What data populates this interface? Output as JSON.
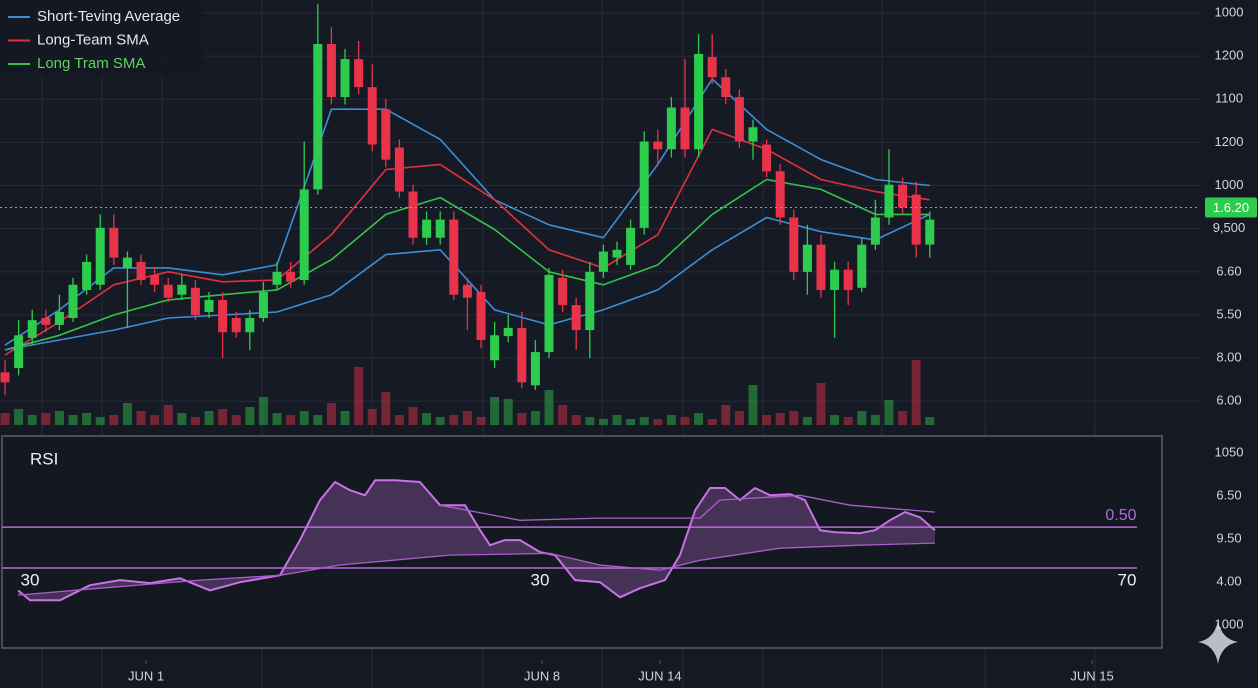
{
  "chart_data": [
    {
      "type": "candlestick",
      "open": [
        0.67,
        0.77,
        1.47,
        1.93,
        1.77,
        1.93,
        2.58,
        2.7,
        4.02,
        3.09,
        3.23,
        2.93,
        2.7,
        2.47,
        2.63,
        2.07,
        2.35,
        1.93,
        1.6,
        1.93,
        2.7,
        3.0,
        2.81,
        4.91,
        8.28,
        7.05,
        7.93,
        7.28,
        6.77,
        5.88,
        4.86,
        3.79,
        3.79,
        4.21,
        2.7,
        2.53,
        0.95,
        1.51,
        1.7,
        0.37,
        1.14,
        2.86,
        2.23,
        1.65,
        3.0,
        3.33,
        3.16,
        4.02,
        6.02,
        5.84,
        6.81,
        5.84,
        7.98,
        7.51,
        7.05,
        6.02,
        5.95,
        5.33,
        4.26,
        3.0,
        3.63,
        2.58,
        3.05,
        2.63,
        3.63,
        4.26,
        5.02,
        4.79,
        3.63
      ],
      "high": [
        0.95,
        1.88,
        2.12,
        2.12,
        2.47,
        2.86,
        3.4,
        4.33,
        4.33,
        3.47,
        3.4,
        3.09,
        2.86,
        2.93,
        2.81,
        2.53,
        2.53,
        2.07,
        2.12,
        2.77,
        3.23,
        3.23,
        6.02,
        9.21,
        8.67,
        8.16,
        8.35,
        7.81,
        7.0,
        6.07,
        5.02,
        4.4,
        4.4,
        4.4,
        2.86,
        2.7,
        1.84,
        2.0,
        2.07,
        1.42,
        3.09,
        3.05,
        2.4,
        3.23,
        3.63,
        3.7,
        4.21,
        6.26,
        6.3,
        7.05,
        7.93,
        8.51,
        8.51,
        7.7,
        7.23,
        6.53,
        6.07,
        5.49,
        4.44,
        4.09,
        3.86,
        3.23,
        3.23,
        3.79,
        4.67,
        5.84,
        5.19,
        5.09,
        4.4
      ],
      "low": [
        0.14,
        0.6,
        1.3,
        1.6,
        1.65,
        1.84,
        2.47,
        2.58,
        3.16,
        1.7,
        2.7,
        2.53,
        2.3,
        2.35,
        1.88,
        1.93,
        1.0,
        1.47,
        1.19,
        1.84,
        2.58,
        2.63,
        2.7,
        4.79,
        6.88,
        6.88,
        7.12,
        5.79,
        5.42,
        4.72,
        3.63,
        3.63,
        3.63,
        2.35,
        1.65,
        1.23,
        0.77,
        1.37,
        0.3,
        0.26,
        1.0,
        2.07,
        1.19,
        1.0,
        2.86,
        3.16,
        3.05,
        3.86,
        5.49,
        5.65,
        5.65,
        5.65,
        7.35,
        6.88,
        5.88,
        5.6,
        5.19,
        4.09,
        2.81,
        2.47,
        2.4,
        1.47,
        2.23,
        2.53,
        3.51,
        4.09,
        4.33,
        3.33,
        3.33
      ],
      "close": [
        0.44,
        1.53,
        1.88,
        1.77,
        2.07,
        2.7,
        3.23,
        4.02,
        3.33,
        3.33,
        2.81,
        2.7,
        2.4,
        2.7,
        2.0,
        2.35,
        1.6,
        1.6,
        1.93,
        2.53,
        3.0,
        2.77,
        4.91,
        8.28,
        7.05,
        7.93,
        7.28,
        5.95,
        5.6,
        4.86,
        3.79,
        4.21,
        4.21,
        2.47,
        2.4,
        1.42,
        1.53,
        1.7,
        0.44,
        1.14,
        2.93,
        2.23,
        1.65,
        3.0,
        3.47,
        3.51,
        4.02,
        6.02,
        5.84,
        6.81,
        5.84,
        8.05,
        7.51,
        7.05,
        6.02,
        6.35,
        5.33,
        4.26,
        3.0,
        3.63,
        2.58,
        3.05,
        2.58,
        3.63,
        4.26,
        5.02,
        4.49,
        3.63,
        4.21
      ],
      "volume": [
        12,
        16,
        10,
        12,
        14,
        10,
        12,
        8,
        10,
        22,
        14,
        10,
        20,
        12,
        8,
        14,
        16,
        10,
        18,
        28,
        12,
        10,
        14,
        10,
        22,
        14,
        58,
        16,
        33,
        10,
        18,
        12,
        8,
        10,
        14,
        8,
        28,
        26,
        12,
        14,
        35,
        20,
        10,
        8,
        6,
        10,
        6,
        8,
        6,
        10,
        8,
        12,
        6,
        20,
        14,
        40,
        10,
        12,
        14,
        8,
        42,
        10,
        8,
        14,
        10,
        25,
        14,
        65,
        8
      ],
      "up_color": "#2ecc4e",
      "down_color": "#e8334a",
      "series": [
        {
          "name": "Short-Teving Average",
          "color": "#3a8fd8",
          "x": [
            0,
            4,
            8,
            12,
            16,
            20,
            24,
            28,
            32,
            36,
            40,
            44,
            48,
            52,
            56,
            60,
            64,
            68
          ],
          "values": [
            1.3,
            2.12,
            3.09,
            3.09,
            2.93,
            3.16,
            6.77,
            6.77,
            6.07,
            4.67,
            4.09,
            3.79,
            5.49,
            7.47,
            6.3,
            5.6,
            5.14,
            5.0
          ]
        },
        {
          "name": "Long-Team SMA",
          "color": "#e0313f",
          "x": [
            0,
            4,
            8,
            12,
            16,
            20,
            24,
            28,
            32,
            36,
            40,
            44,
            48,
            52,
            56,
            60,
            64,
            68
          ],
          "values": [
            1.07,
            1.84,
            2.7,
            3.0,
            2.77,
            2.81,
            3.86,
            5.37,
            5.49,
            4.67,
            3.51,
            3.09,
            3.86,
            6.3,
            5.84,
            5.14,
            4.86,
            4.67
          ]
        },
        {
          "name": "Long Tram SMA",
          "color": "#35c24a",
          "label_color": "#5fd35f",
          "x": [
            0,
            4,
            8,
            12,
            16,
            20,
            24,
            28,
            32,
            36,
            40,
            44,
            48,
            52,
            56,
            60,
            64,
            68
          ],
          "values": [
            1.19,
            1.53,
            2.0,
            2.35,
            2.47,
            2.58,
            3.28,
            4.33,
            4.72,
            3.98,
            3.0,
            2.7,
            3.16,
            4.33,
            5.14,
            4.91,
            4.33,
            4.33
          ]
        },
        {
          "color": "#3a8fd8",
          "x": [
            0,
            4,
            8,
            12,
            16,
            20,
            24,
            28,
            32,
            36,
            40,
            44,
            48,
            52,
            56,
            60,
            64,
            68
          ],
          "values": [
            1.19,
            1.42,
            1.65,
            1.93,
            2.0,
            2.07,
            2.47,
            3.4,
            3.51,
            2.12,
            1.77,
            2.12,
            2.58,
            3.51,
            4.26,
            3.93,
            3.74,
            4.33
          ]
        }
      ],
      "current_price": {
        "value": 4.49,
        "label": "1.6.20"
      },
      "xlim": [
        -0.37,
        87.87
      ],
      "xticks": [
        {
          "value": 10.37,
          "label": "JUN 1"
        },
        {
          "value": 39.49,
          "label": "JUN 8"
        },
        {
          "value": 48.16,
          "label": "JUN 14"
        },
        {
          "value": 79.93,
          "label": "JUN 15"
        }
      ],
      "ylim": [
        -0.55,
        9.3
      ],
      "yticks": [
        {
          "value": 9,
          "label": "1000"
        },
        {
          "value": 8,
          "label": "1200"
        },
        {
          "value": 7,
          "label": "1100"
        },
        {
          "value": 6,
          "label": "1200"
        },
        {
          "value": 5,
          "label": "1000"
        },
        {
          "value": 4,
          "label": "9,500"
        },
        {
          "value": 3,
          "label": "6.60"
        },
        {
          "value": 2,
          "label": "5.50"
        },
        {
          "value": 1,
          "label": "8.00"
        },
        {
          "value": 0,
          "label": "6.00"
        }
      ],
      "grid": true,
      "legend": "upper left"
    },
    {
      "type": "line",
      "title": "RSI",
      "series": [
        {
          "color": "#c873e6",
          "x": [
            0.96,
            1.84,
            4.04,
            6.25,
            8.46,
            10.66,
            12.87,
            15.07,
            17.28,
            20.22,
            21.69,
            23.16,
            24.26,
            25.37,
            26.47,
            27.21,
            28.68,
            30.51,
            31.99,
            33.82,
            34.93,
            35.66,
            36.76,
            37.87,
            39.34,
            40.44,
            41.91,
            43.75,
            45.22,
            46.69,
            48.53,
            49.63,
            50.74,
            51.84,
            52.94,
            54.04,
            55.15,
            56.25,
            57.72,
            58.82,
            59.93,
            61.03,
            62.87,
            63.97,
            65.07,
            66.18,
            67.28,
            68.38
          ],
          "values": [
            0.81,
            0.58,
            0.58,
            0.93,
            1.05,
            0.98,
            1.09,
            0.81,
            1.0,
            1.16,
            1.98,
            2.91,
            3.33,
            3.14,
            3.02,
            3.37,
            3.37,
            3.33,
            2.79,
            2.79,
            2.21,
            1.86,
            1.98,
            1.98,
            1.7,
            1.63,
            1.05,
            1.0,
            0.65,
            0.86,
            1.05,
            1.63,
            2.67,
            3.19,
            3.19,
            2.91,
            3.19,
            3.02,
            3.05,
            2.91,
            2.21,
            2.16,
            2.14,
            2.21,
            2.44,
            2.63,
            2.51,
            2.21
          ]
        },
        {
          "color": "#a95fc9",
          "x": [
            0.96,
            6.99,
            14.34,
            20.22,
            24.63,
            32.72,
            40.07,
            43.75,
            48.16,
            51.1,
            56.99,
            62.87,
            68.38
          ],
          "values": [
            0.7,
            0.86,
            1.05,
            1.16,
            1.4,
            1.63,
            1.67,
            1.4,
            1.28,
            1.51,
            1.79,
            1.86,
            1.91
          ]
        },
        {
          "color": "#a95fc9",
          "x": [
            31.99,
            37.87,
            43.75,
            51.1,
            52.57,
            58.46,
            62.13,
            68.38
          ],
          "values": [
            2.79,
            2.44,
            2.49,
            2.49,
            2.91,
            3.02,
            2.79,
            2.63
          ]
        }
      ],
      "levels": [
        2.28,
        1.33
      ],
      "level_color": "#b468d8",
      "annotations": [
        "0.50",
        "30",
        "30",
        "70"
      ],
      "xlim": [
        -0.37,
        87.87
      ],
      "ylim": [
        -0.53,
        4.4
      ],
      "yticks": [
        {
          "value": 4,
          "label": "1050"
        },
        {
          "value": 3,
          "label": "6.50"
        },
        {
          "value": 2,
          "label": "9.50"
        },
        {
          "value": 1,
          "label": "4.00"
        },
        {
          "value": 0,
          "label": "1000"
        }
      ]
    }
  ]
}
